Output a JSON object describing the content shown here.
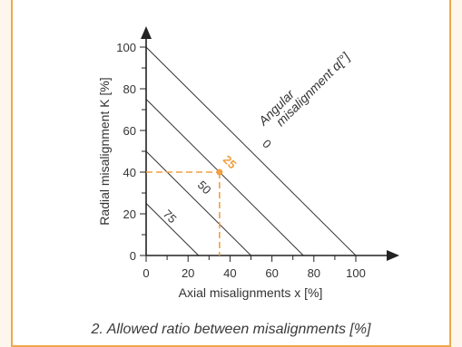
{
  "chart_data": {
    "type": "line",
    "title": "",
    "xlabel": "Axial misalignments  x [%]",
    "ylabel": "Radial misalignment  K [%]",
    "xlim": [
      0,
      100
    ],
    "ylim": [
      0,
      100
    ],
    "x_ticks": [
      0,
      20,
      40,
      60,
      80,
      100
    ],
    "y_ticks": [
      0,
      20,
      40,
      60,
      80,
      100
    ],
    "tick_labels_x": [
      "0",
      "20",
      "40",
      "60",
      "80",
      "100"
    ],
    "tick_labels_y": [
      "0",
      "20",
      "40",
      "60",
      "80",
      "100"
    ],
    "grid": false,
    "series": [
      {
        "name": "0",
        "x": [
          0,
          100
        ],
        "y": [
          100,
          0
        ]
      },
      {
        "name": "25",
        "x": [
          0,
          75
        ],
        "y": [
          75,
          0
        ]
      },
      {
        "name": "50",
        "x": [
          0,
          50
        ],
        "y": [
          50,
          0
        ]
      },
      {
        "name": "75",
        "x": [
          0,
          25
        ],
        "y": [
          25,
          0
        ]
      }
    ],
    "series_label_title_line1": "Angular",
    "series_label_title_line2": "misalignment α[°]",
    "highlight_point": {
      "x": 35,
      "y": 40
    },
    "colors": {
      "lines": "#333333",
      "highlight": "#f0a040",
      "frame": "#f0a848"
    }
  },
  "caption": "2. Allowed ratio between misalignments [%]"
}
